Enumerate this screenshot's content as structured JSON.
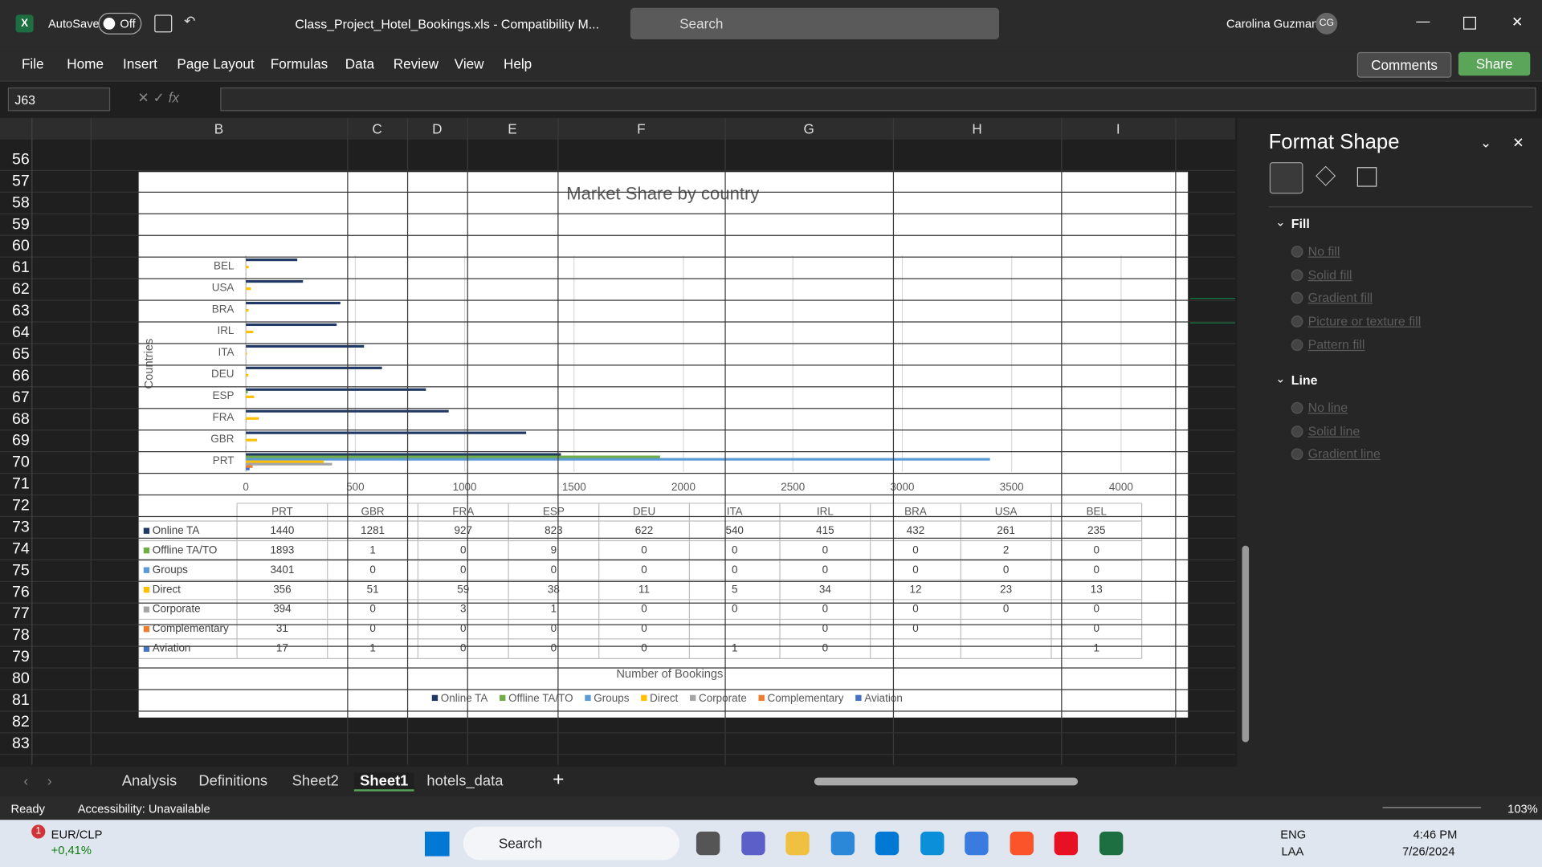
{
  "title_bar": {
    "autosave": "AutoSave",
    "autosave_state": "Off",
    "file_name": "Class_Project_Hotel_Bookings.xls  -  Compatibility M...",
    "search": "Search",
    "user": "Carolina Guzman",
    "user_initials": "CG"
  },
  "ribbon": {
    "tabs": [
      "File",
      "Home",
      "Insert",
      "Page Layout",
      "Formulas",
      "Data",
      "Review",
      "View",
      "Help"
    ],
    "comments": "Comments",
    "share": "Share"
  },
  "formula_bar": {
    "name_box": "J63"
  },
  "sheet": {
    "columns": [
      "B",
      "C",
      "D",
      "E",
      "F",
      "G",
      "H",
      "I"
    ],
    "rows": [
      56,
      57,
      58,
      59,
      60,
      61,
      62,
      63,
      64,
      65,
      66,
      67,
      68,
      69,
      70,
      71,
      72,
      73,
      74,
      75,
      76,
      77,
      78,
      79,
      80,
      81,
      82,
      83
    ]
  },
  "chart_data": {
    "type": "bar",
    "orientation": "horizontal",
    "title": "Market Share by country",
    "x_label": "Number of Bookings",
    "y_label": "Countries",
    "categories": [
      "PRT",
      "GBR",
      "FRA",
      "ESP",
      "DEU",
      "ITA",
      "IRL",
      "BRA",
      "USA",
      "BEL"
    ],
    "series": [
      {
        "name": "Online TA",
        "color": "#1f3864",
        "values": [
          1440,
          1281,
          927,
          823,
          622,
          540,
          415,
          432,
          261,
          235
        ]
      },
      {
        "name": "Offline TA/TO",
        "color": "#70ad47",
        "values": [
          1893,
          1,
          0,
          9,
          0,
          0,
          0,
          0,
          2,
          0
        ]
      },
      {
        "name": "Groups",
        "color": "#5b9bd5",
        "values": [
          3401,
          0,
          0,
          0,
          0,
          0,
          0,
          0,
          0,
          0
        ]
      },
      {
        "name": "Direct",
        "color": "#ffc000",
        "values": [
          356,
          51,
          59,
          38,
          11,
          5,
          34,
          12,
          23,
          13
        ]
      },
      {
        "name": "Corporate",
        "color": "#a5a5a5",
        "values": [
          394,
          0,
          3,
          1,
          0,
          0,
          0,
          0,
          0,
          0
        ]
      },
      {
        "name": "Complementary",
        "color": "#ed7d31",
        "values": [
          31,
          0,
          0,
          0,
          0,
          null,
          0,
          0,
          null,
          0
        ]
      },
      {
        "name": "Aviation",
        "color": "#4472c4",
        "values": [
          17,
          1,
          0,
          0,
          0,
          1,
          0,
          null,
          null,
          1
        ]
      }
    ],
    "xlim": [
      0,
      4000
    ],
    "xticks": [
      0,
      500,
      1000,
      1500,
      2000,
      2500,
      3000,
      3500,
      4000
    ],
    "grid": true,
    "legend": "bottom",
    "data_table": true
  },
  "format_shape": {
    "title": "Format Shape",
    "fill": {
      "heading": "Fill",
      "options": [
        "No fill",
        "Solid fill",
        "Gradient fill",
        "Picture or texture fill",
        "Pattern fill"
      ]
    },
    "line": {
      "heading": "Line",
      "options": [
        "No line",
        "Solid line",
        "Gradient line"
      ]
    }
  },
  "sheet_tabs": [
    "Analysis",
    "Definitions",
    "Sheet2",
    "Sheet1",
    "hotels_data"
  ],
  "status_bar": {
    "ready": "Ready",
    "accessibility": "Accessibility: Unavailable",
    "zoom": "103%"
  },
  "taskbar": {
    "badge": "1",
    "ticker": "EUR/CLP",
    "change": "+0,41%",
    "search": "Search",
    "lang": "ENG",
    "layout": "LAA",
    "time": "4:46 PM",
    "date": "7/26/2024"
  }
}
